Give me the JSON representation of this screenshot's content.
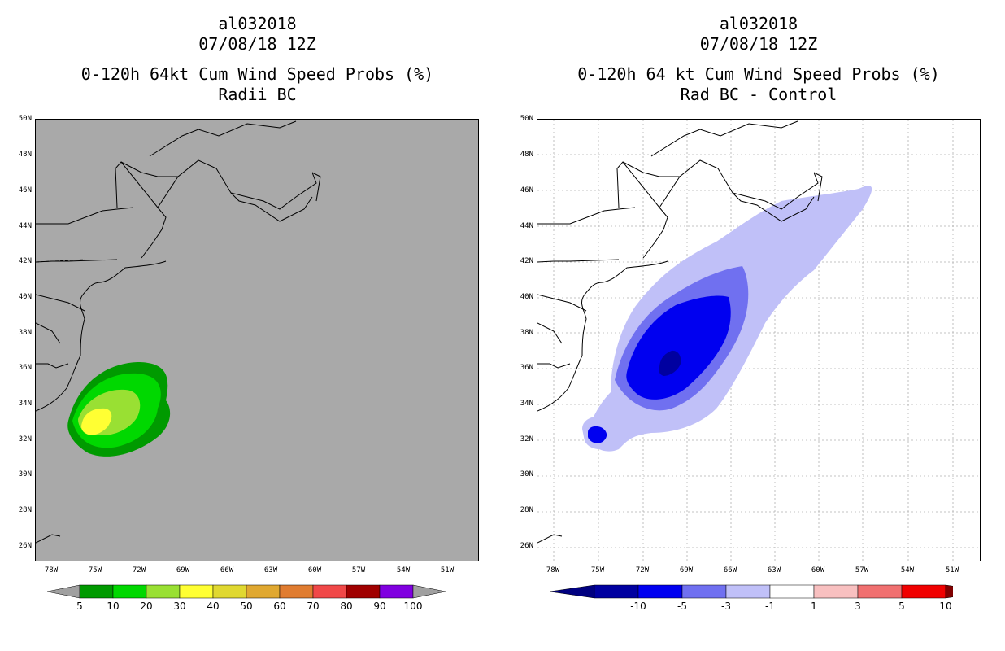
{
  "left_panel": {
    "title_line1": "al032018",
    "title_line2": "07/08/18 12Z",
    "title_line3": "0-120h 64kt Cum Wind Speed Probs (%)",
    "title_line4": "Radii BC",
    "background_color": "#a9a9a9",
    "colorbar": {
      "labels": [
        "5",
        "10",
        "20",
        "30",
        "40",
        "50",
        "60",
        "70",
        "80",
        "90",
        "100"
      ],
      "colors": [
        "#009a00",
        "#00d800",
        "#99e033",
        "#ffff33",
        "#e0d830",
        "#e0a830",
        "#e07c30",
        "#f04848",
        "#a00000",
        "#8000e0"
      ],
      "end_color": "#a0a0a0"
    }
  },
  "right_panel": {
    "title_line1": "al032018",
    "title_line2": "07/08/18 12Z",
    "title_line3": "0-120h 64 kt Cum Wind Speed Probs (%)",
    "title_line4": "Rad BC - Control",
    "colorbar": {
      "labels": [
        "-10",
        "-5",
        "-3",
        "-1",
        "1",
        "3",
        "5",
        "10"
      ],
      "colors": [
        "#0000a0",
        "#0000f0",
        "#7070f0",
        "#c0c0f8",
        "#ffffff",
        "#f8c0c0",
        "#f07070",
        "#f00000"
      ],
      "low_end_color": "#000080",
      "high_end_color": "#800000"
    }
  },
  "axes": {
    "lat_labels": [
      "50N",
      "48N",
      "46N",
      "44N",
      "42N",
      "40N",
      "38N",
      "36N",
      "34N",
      "32N",
      "30N",
      "28N",
      "26N"
    ],
    "lon_labels": [
      "78W",
      "75W",
      "72W",
      "69W",
      "66W",
      "63W",
      "60W",
      "57W",
      "54W",
      "51W"
    ]
  }
}
